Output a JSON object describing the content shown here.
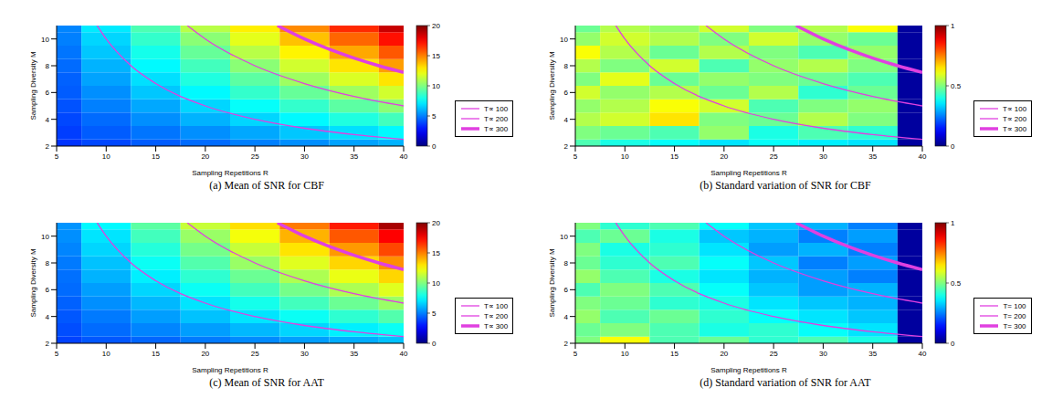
{
  "chart_data": [
    {
      "type": "heatmap",
      "title": "(a) Mean of SNR for CBF",
      "x_label": "Sampling Repetitions R",
      "y_label": "Sampling Diversity M",
      "xlim": [
        5,
        40
      ],
      "ylim": [
        2,
        11
      ],
      "xticks": [
        5,
        10,
        15,
        20,
        25,
        30,
        35,
        40
      ],
      "yticks": [
        2,
        4,
        6,
        8,
        10
      ],
      "x": [
        5,
        10,
        15,
        20,
        25,
        30,
        35,
        40
      ],
      "y": [
        2,
        3,
        4,
        5,
        6,
        7,
        8,
        9,
        10,
        11
      ],
      "cells": [
        [
          3.5,
          3.9,
          4.3,
          4.6,
          5.0,
          5.3,
          5.7,
          6.0
        ],
        [
          3.7,
          4.3,
          4.8,
          5.3,
          5.8,
          6.4,
          6.9,
          7.4
        ],
        [
          3.9,
          4.6,
          5.3,
          6.0,
          6.7,
          7.4,
          8.1,
          8.8
        ],
        [
          4.1,
          5.0,
          5.8,
          6.7,
          7.6,
          8.5,
          9.3,
          10.2
        ],
        [
          4.3,
          5.3,
          6.4,
          7.4,
          8.5,
          9.5,
          10.6,
          11.6
        ],
        [
          4.4,
          5.7,
          6.9,
          8.1,
          9.3,
          10.6,
          11.8,
          13.0
        ],
        [
          4.6,
          6.0,
          7.4,
          8.8,
          10.2,
          11.6,
          13.0,
          14.4
        ],
        [
          4.8,
          6.4,
          7.9,
          9.5,
          11.1,
          12.7,
          14.2,
          15.8
        ],
        [
          5.0,
          6.7,
          8.5,
          10.2,
          12.0,
          13.7,
          15.5,
          17.2
        ],
        [
          5.1,
          7.1,
          9.0,
          11.1,
          12.8,
          14.8,
          16.7,
          18.6
        ]
      ],
      "colorbar": {
        "range": [
          0,
          20
        ],
        "ticks": [
          0,
          5,
          10,
          15,
          20
        ]
      },
      "legend": "right",
      "series": [
        {
          "name": "T∝ 100",
          "color": "#e040e0",
          "x": [
            9.09,
            10,
            12.5,
            15,
            20,
            25,
            30,
            35,
            40
          ],
          "values": [
            11,
            10,
            8,
            6.67,
            5,
            4,
            3.33,
            2.86,
            2.5
          ]
        },
        {
          "name": "T∝ 200",
          "color": "#e040e0",
          "x": [
            18.18,
            20,
            25,
            30,
            35,
            40
          ],
          "values": [
            11,
            10,
            8,
            6.67,
            5.71,
            5
          ]
        },
        {
          "name": "T∝ 300",
          "color": "#e040e0",
          "x": [
            27.27,
            30,
            32.5,
            35,
            37.5,
            40
          ],
          "values": [
            11,
            10,
            9.23,
            8.57,
            8,
            7.5
          ]
        }
      ]
    },
    {
      "type": "heatmap",
      "title": "(b) Standard variation of SNR for CBF",
      "x_label": "Sampling Repetitions R",
      "y_label": "Sampling Diversity M",
      "xlim": [
        5,
        40
      ],
      "ylim": [
        2,
        11
      ],
      "xticks": [
        5,
        10,
        15,
        20,
        25,
        30,
        35,
        40
      ],
      "yticks": [
        2,
        4,
        6,
        8,
        10
      ],
      "x": [
        5,
        10,
        15,
        20,
        25,
        30,
        35,
        40
      ],
      "y": [
        2,
        3,
        4,
        5,
        6,
        7,
        8,
        9,
        10,
        11
      ],
      "cells": [
        [
          0.45,
          0.4,
          0.38,
          0.35,
          0.38,
          0.36,
          0.35,
          0.03
        ],
        [
          0.5,
          0.48,
          0.45,
          0.52,
          0.4,
          0.45,
          0.42,
          0.03
        ],
        [
          0.55,
          0.58,
          0.65,
          0.5,
          0.48,
          0.55,
          0.5,
          0.03
        ],
        [
          0.52,
          0.55,
          0.62,
          0.58,
          0.45,
          0.5,
          0.52,
          0.03
        ],
        [
          0.58,
          0.52,
          0.55,
          0.48,
          0.55,
          0.42,
          0.48,
          0.03
        ],
        [
          0.5,
          0.6,
          0.48,
          0.52,
          0.5,
          0.48,
          0.45,
          0.03
        ],
        [
          0.55,
          0.5,
          0.58,
          0.45,
          0.52,
          0.55,
          0.5,
          0.03
        ],
        [
          0.62,
          0.55,
          0.48,
          0.55,
          0.5,
          0.45,
          0.52,
          0.03
        ],
        [
          0.52,
          0.58,
          0.55,
          0.5,
          0.58,
          0.52,
          0.48,
          0.03
        ],
        [
          0.48,
          0.55,
          0.52,
          0.58,
          0.5,
          0.55,
          0.62,
          0.03
        ]
      ],
      "colorbar": {
        "range": [
          0,
          1
        ],
        "ticks": [
          0,
          0.5,
          1
        ]
      },
      "legend": "right",
      "series": [
        {
          "name": "T∝ 100",
          "color": "#e040e0",
          "x": [
            9.09,
            10,
            12.5,
            15,
            20,
            25,
            30,
            35,
            40
          ],
          "values": [
            11,
            10,
            8,
            6.67,
            5,
            4,
            3.33,
            2.86,
            2.5
          ]
        },
        {
          "name": "T∝ 200",
          "color": "#e040e0",
          "x": [
            18.18,
            20,
            25,
            30,
            35,
            40
          ],
          "values": [
            11,
            10,
            8,
            6.67,
            5.71,
            5
          ]
        },
        {
          "name": "T∝ 300",
          "color": "#e040e0",
          "x": [
            27.27,
            30,
            32.5,
            35,
            37.5,
            40
          ],
          "values": [
            11,
            10,
            9.23,
            8.57,
            8,
            7.5
          ]
        }
      ]
    },
    {
      "type": "heatmap",
      "title": "(c) Mean of SNR for AAT",
      "x_label": "Sampling Repetitions R",
      "y_label": "Sampling Diversity M",
      "xlim": [
        5,
        40
      ],
      "ylim": [
        2,
        11
      ],
      "xticks": [
        5,
        10,
        15,
        20,
        25,
        30,
        35,
        40
      ],
      "yticks": [
        2,
        4,
        6,
        8,
        10
      ],
      "x": [
        5,
        10,
        15,
        20,
        25,
        30,
        35,
        40
      ],
      "y": [
        2,
        3,
        4,
        5,
        6,
        7,
        8,
        9,
        10,
        11
      ],
      "cells": [
        [
          3.8,
          4.2,
          4.5,
          4.9,
          5.2,
          5.6,
          5.9,
          6.3
        ],
        [
          4.0,
          4.6,
          5.1,
          5.6,
          6.1,
          6.7,
          7.2,
          7.7
        ],
        [
          4.2,
          4.9,
          5.6,
          6.3,
          7.0,
          7.7,
          8.4,
          9.1
        ],
        [
          4.4,
          5.3,
          6.1,
          7.0,
          7.9,
          8.8,
          9.6,
          10.5
        ],
        [
          4.6,
          5.6,
          6.7,
          7.7,
          8.8,
          9.8,
          10.9,
          11.9
        ],
        [
          4.7,
          6.0,
          7.2,
          8.4,
          9.6,
          10.9,
          12.1,
          13.3
        ],
        [
          4.9,
          6.3,
          7.7,
          9.1,
          10.5,
          11.9,
          13.3,
          14.7
        ],
        [
          5.1,
          6.7,
          8.2,
          9.8,
          11.4,
          13.0,
          14.5,
          16.1
        ],
        [
          5.3,
          7.0,
          8.8,
          10.5,
          12.3,
          14.0,
          15.8,
          17.5
        ],
        [
          5.4,
          7.4,
          9.3,
          11.4,
          13.1,
          15.1,
          17.0,
          19.2
        ]
      ],
      "colorbar": {
        "range": [
          0,
          20
        ],
        "ticks": [
          0,
          5,
          10,
          15,
          20
        ]
      },
      "legend": "right",
      "series": [
        {
          "name": "T∝ 100",
          "color": "#e040e0",
          "x": [
            9.09,
            10,
            12.5,
            15,
            20,
            25,
            30,
            35,
            40
          ],
          "values": [
            11,
            10,
            8,
            6.67,
            5,
            4,
            3.33,
            2.86,
            2.5
          ]
        },
        {
          "name": "T∝ 200",
          "color": "#e040e0",
          "x": [
            18.18,
            20,
            25,
            30,
            35,
            40
          ],
          "values": [
            11,
            10,
            8,
            6.67,
            5.71,
            5
          ]
        },
        {
          "name": "T∝ 300",
          "color": "#e040e0",
          "x": [
            27.27,
            30,
            32.5,
            35,
            37.5,
            40
          ],
          "values": [
            11,
            10,
            9.23,
            8.57,
            8,
            7.5
          ]
        }
      ]
    },
    {
      "type": "heatmap",
      "title": "(d) Standard variation of SNR for AAT",
      "x_label": "Sampling Repetitions R",
      "y_label": "Sampling Diversity M",
      "xlim": [
        5,
        40
      ],
      "ylim": [
        2,
        11
      ],
      "xticks": [
        5,
        10,
        15,
        20,
        25,
        30,
        35,
        40
      ],
      "yticks": [
        2,
        4,
        6,
        8,
        10
      ],
      "x": [
        5,
        10,
        15,
        20,
        25,
        30,
        35,
        40
      ],
      "y": [
        2,
        3,
        4,
        5,
        6,
        7,
        8,
        9,
        10,
        11
      ],
      "cells": [
        [
          0.5,
          0.62,
          0.45,
          0.48,
          0.42,
          0.45,
          0.4,
          0.03
        ],
        [
          0.48,
          0.5,
          0.45,
          0.4,
          0.42,
          0.38,
          0.35,
          0.03
        ],
        [
          0.52,
          0.45,
          0.48,
          0.42,
          0.38,
          0.35,
          0.32,
          0.03
        ],
        [
          0.5,
          0.48,
          0.42,
          0.4,
          0.35,
          0.32,
          0.3,
          0.03
        ],
        [
          0.45,
          0.5,
          0.45,
          0.38,
          0.32,
          0.28,
          0.3,
          0.03
        ],
        [
          0.52,
          0.45,
          0.4,
          0.35,
          0.3,
          0.28,
          0.25,
          0.03
        ],
        [
          0.48,
          0.42,
          0.45,
          0.38,
          0.32,
          0.25,
          0.28,
          0.03
        ],
        [
          0.5,
          0.4,
          0.42,
          0.35,
          0.28,
          0.3,
          0.25,
          0.03
        ],
        [
          0.45,
          0.48,
          0.4,
          0.32,
          0.3,
          0.25,
          0.28,
          0.03
        ],
        [
          0.5,
          0.42,
          0.45,
          0.38,
          0.32,
          0.3,
          0.25,
          0.03
        ]
      ],
      "colorbar": {
        "range": [
          0,
          1
        ],
        "ticks": [
          0,
          0.5,
          1
        ]
      },
      "legend": "right",
      "series": [
        {
          "name": "T= 100",
          "color": "#e040e0",
          "x": [
            9.09,
            10,
            12.5,
            15,
            20,
            25,
            30,
            35,
            40
          ],
          "values": [
            11,
            10,
            8,
            6.67,
            5,
            4,
            3.33,
            2.86,
            2.5
          ]
        },
        {
          "name": "T= 200",
          "color": "#e040e0",
          "x": [
            18.18,
            20,
            25,
            30,
            35,
            40
          ],
          "values": [
            11,
            10,
            8,
            6.67,
            5.71,
            5
          ]
        },
        {
          "name": "T= 300",
          "color": "#e040e0",
          "x": [
            27.27,
            30,
            32.5,
            35,
            37.5,
            40
          ],
          "values": [
            11,
            10,
            9.23,
            8.57,
            8,
            7.5
          ]
        }
      ]
    }
  ]
}
